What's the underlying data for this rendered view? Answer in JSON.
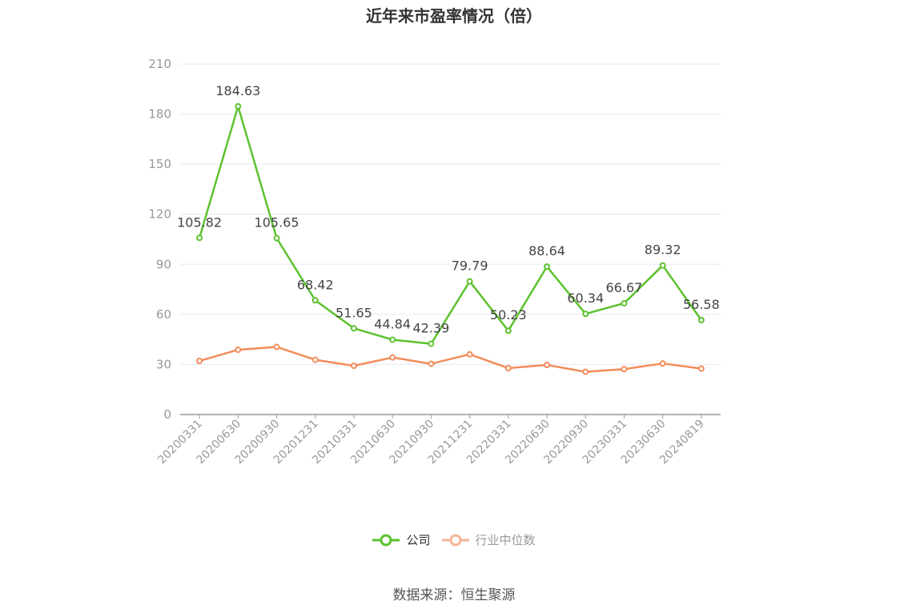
{
  "chart_data": {
    "type": "line",
    "title": "近年来市盈率情况（倍）",
    "categories": [
      "20200331",
      "20200630",
      "20200930",
      "20201231",
      "20210331",
      "20210630",
      "20210930",
      "20211231",
      "20220331",
      "20220630",
      "20220930",
      "20230331",
      "20230630",
      "20240819"
    ],
    "series": [
      {
        "name": "公司",
        "color": "#5cc22e",
        "values": [
          105.82,
          184.63,
          105.65,
          68.42,
          51.65,
          44.84,
          42.39,
          79.79,
          50.23,
          88.64,
          60.34,
          66.67,
          89.32,
          56.58
        ],
        "show_labels": true
      },
      {
        "name": "行业中位数",
        "color": "#f28c5a",
        "legend_color": "#f6b49a",
        "values": [
          32.1,
          38.8,
          40.5,
          32.8,
          29.2,
          34.2,
          30.4,
          36.1,
          27.8,
          29.7,
          25.6,
          27.2,
          30.6,
          27.5
        ],
        "show_labels": false
      }
    ],
    "ylim": [
      0,
      210
    ],
    "yticks": [
      0,
      30,
      60,
      90,
      120,
      150,
      180,
      210
    ],
    "grid": true,
    "legend": "bottom-center",
    "source": "数据来源：恒生聚源"
  }
}
